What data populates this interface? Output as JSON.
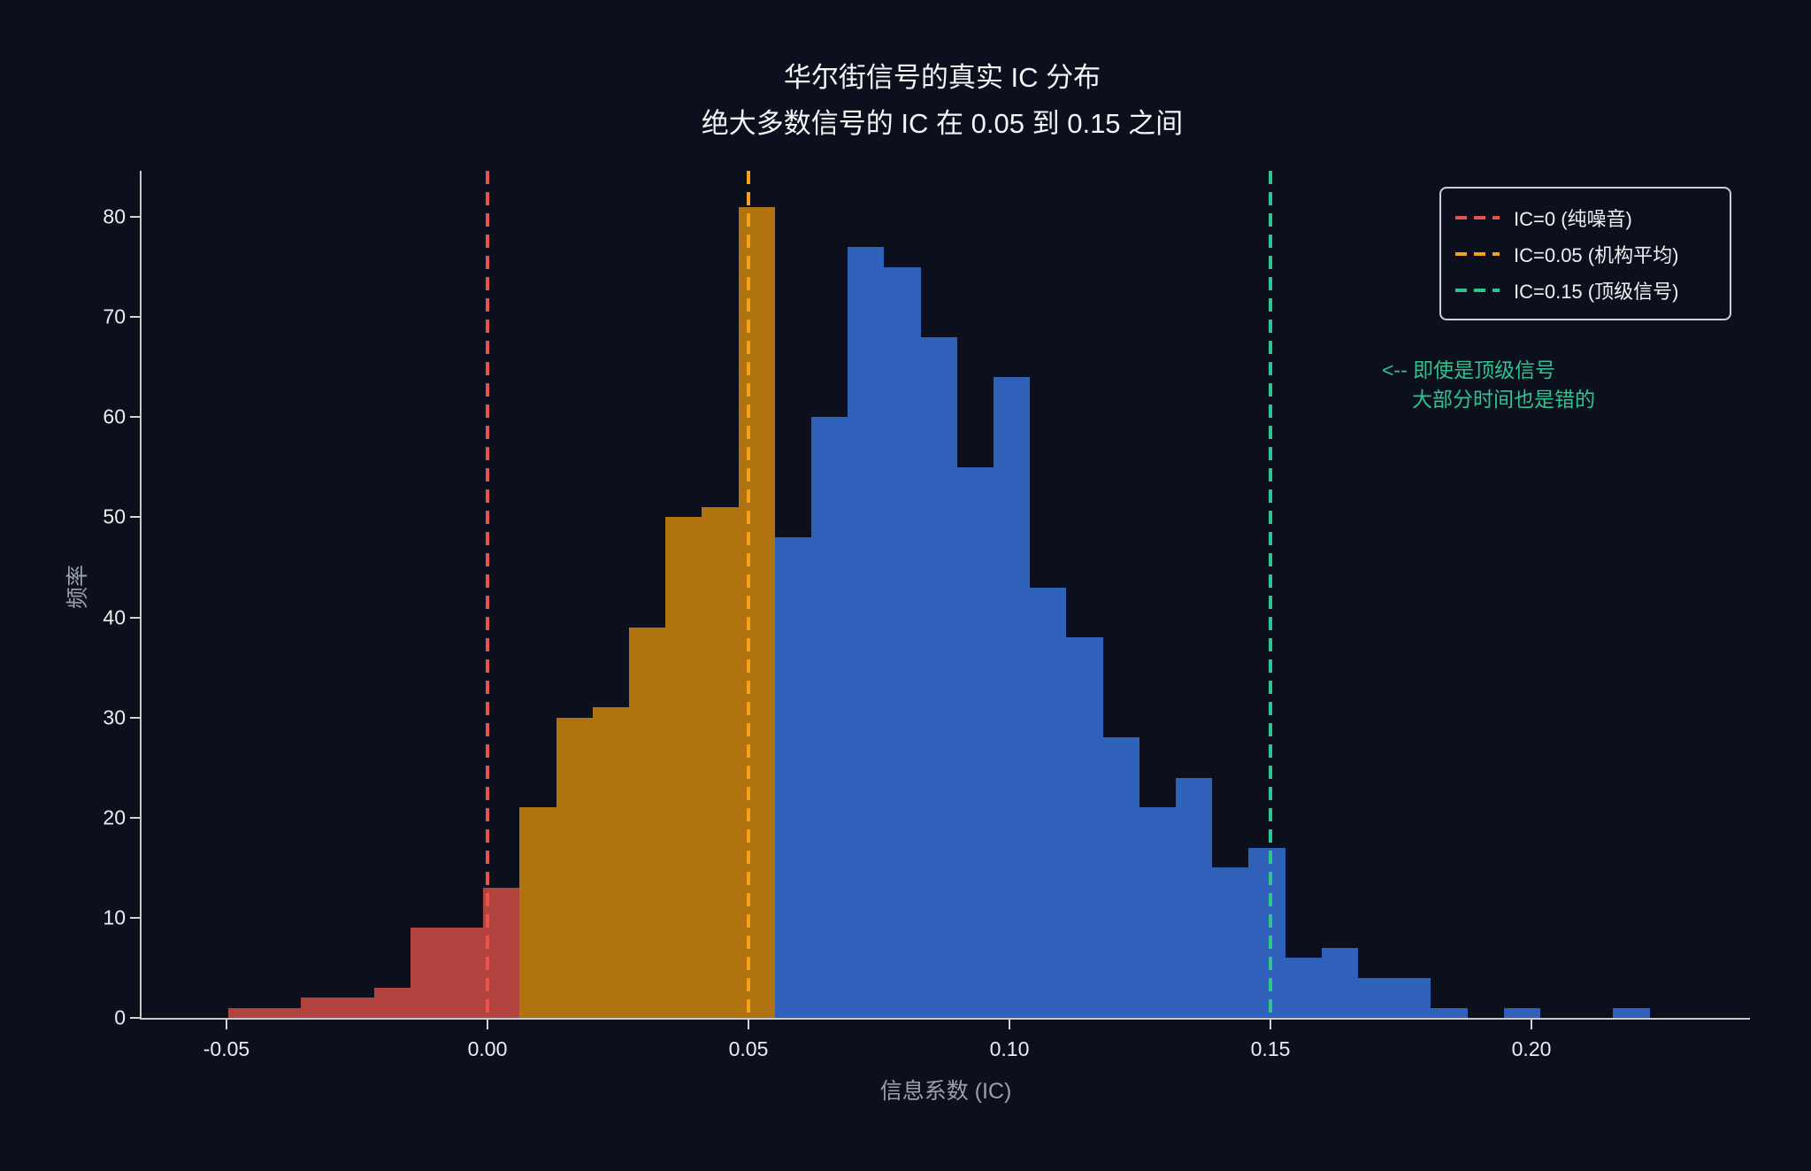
{
  "figure": {
    "title_line1": "华尔街信号的真实 IC 分布",
    "title_line2": "绝大多数信号的 IC 在 0.05 到 0.15 之间"
  },
  "chart_data": {
    "type": "bar",
    "subtype": "histogram",
    "title": "华尔街信号的真实 IC 分布",
    "subtitle": "绝大多数信号的 IC 在 0.05 到 0.15 之间",
    "xlabel": "信息系数 (IC)",
    "ylabel": "频率",
    "xlim": [
      -0.06627,
      0.24186
    ],
    "ylim": [
      0,
      84.6
    ],
    "grid": false,
    "background_color": "#0c101d",
    "n_samples": 999,
    "histogram": {
      "bin_start": -0.0497,
      "bin_width": 0.006983,
      "segments": [
        {
          "name": "ic-below-0",
          "color": "#b2433e",
          "counts": [
            1,
            1,
            2,
            2,
            3,
            9,
            9,
            13
          ]
        },
        {
          "name": "ic-0-to-0.05",
          "color": "#b1730f",
          "counts": [
            21,
            30,
            31,
            39,
            50,
            51,
            81
          ]
        },
        {
          "name": "ic-above-0.05",
          "color": "#3061ba",
          "counts": [
            48,
            60,
            77,
            75,
            68,
            55,
            64,
            43,
            38,
            28,
            21,
            24,
            15,
            17,
            6,
            7,
            4,
            4,
            1,
            0,
            1,
            0,
            0,
            1,
            0
          ]
        }
      ]
    },
    "vlines": [
      {
        "x": 0.0,
        "color": "#e8544b",
        "label": "IC=0 (纯噪音)"
      },
      {
        "x": 0.05,
        "color": "#f3a21a",
        "label": "IC=0.05 (机构平均)"
      },
      {
        "x": 0.15,
        "color": "#2dc490",
        "label": "IC=0.15 (顶级信号)"
      }
    ],
    "legend_position": "upper right",
    "x_ticks": [
      {
        "value": -0.05,
        "label": "-0.05"
      },
      {
        "value": 0.0,
        "label": "0.00"
      },
      {
        "value": 0.05,
        "label": "0.05"
      },
      {
        "value": 0.1,
        "label": "0.10"
      },
      {
        "value": 0.15,
        "label": "0.15"
      },
      {
        "value": 0.2,
        "label": "0.20"
      }
    ],
    "y_ticks": [
      {
        "value": 0,
        "label": "0"
      },
      {
        "value": 10,
        "label": "10"
      },
      {
        "value": 20,
        "label": "20"
      },
      {
        "value": 30,
        "label": "30"
      },
      {
        "value": 40,
        "label": "40"
      },
      {
        "value": 50,
        "label": "50"
      },
      {
        "value": 60,
        "label": "60"
      },
      {
        "value": 70,
        "label": "70"
      },
      {
        "value": 80,
        "label": "80"
      }
    ],
    "annotation": {
      "line1": "<-- 即使是顶级信号",
      "line2": "大部分时间也是错的",
      "color": "#2dc490"
    }
  }
}
